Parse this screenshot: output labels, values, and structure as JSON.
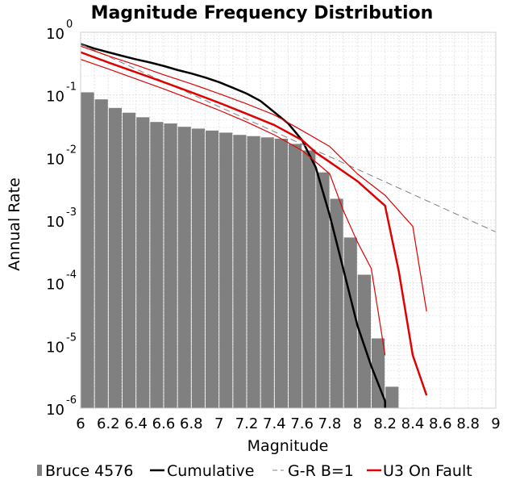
{
  "chart_data": {
    "type": "bar",
    "title": "Magnitude Frequency Distribution",
    "xlabel": "Magnitude",
    "ylabel": "Annual Rate",
    "xlim": [
      6,
      9
    ],
    "ylim": [
      1e-06,
      1
    ],
    "yscale": "log",
    "grid": true,
    "x_ticks": [
      "6",
      "6.2",
      "6.4",
      "6.6",
      "6.8",
      "7",
      "7.2",
      "7.4",
      "7.6",
      "7.8",
      "8",
      "8.2",
      "8.4",
      "8.6",
      "8.8",
      "9"
    ],
    "y_ticks": [
      {
        "base": "10",
        "exp": "0",
        "value": 1
      },
      {
        "base": "10",
        "exp": "-1",
        "value": 0.1
      },
      {
        "base": "10",
        "exp": "-2",
        "value": 0.01
      },
      {
        "base": "10",
        "exp": "-3",
        "value": 0.001
      },
      {
        "base": "10",
        "exp": "-4",
        "value": 0.0001
      },
      {
        "base": "10",
        "exp": "-5",
        "value": 1e-05
      },
      {
        "base": "10",
        "exp": "-6",
        "value": 1e-06
      }
    ],
    "legend_position": "bottom",
    "legend": [
      {
        "label": "Bruce 4576",
        "marker": "bar",
        "color": "#808080"
      },
      {
        "label": "Cumulative",
        "marker": "line",
        "color": "#000000"
      },
      {
        "label": "G-R B=1",
        "marker": "dashed",
        "color": "#808080"
      },
      {
        "label": "U3 On Fault",
        "marker": "line",
        "color": "#e00000"
      }
    ],
    "bars": {
      "name": "Bruce 4576",
      "color": "#808080",
      "bin_width": 0.1,
      "x": [
        6.05,
        6.15,
        6.25,
        6.35,
        6.45,
        6.55,
        6.65,
        6.75,
        6.85,
        6.95,
        7.05,
        7.15,
        7.25,
        7.35,
        7.45,
        7.55,
        7.65,
        7.75,
        7.85,
        7.95,
        8.05,
        8.15,
        8.25
      ],
      "values": [
        0.11,
        0.085,
        0.062,
        0.052,
        0.044,
        0.037,
        0.035,
        0.031,
        0.029,
        0.027,
        0.025,
        0.023,
        0.022,
        0.021,
        0.02,
        0.0165,
        0.013,
        0.0058,
        0.0022,
        0.00053,
        0.000135,
        1.3e-05,
        2.2e-06
      ]
    },
    "series": [
      {
        "name": "Cumulative",
        "color": "#000000",
        "width": 2.5,
        "x": [
          6.0,
          6.1,
          6.2,
          6.3,
          6.4,
          6.5,
          6.6,
          6.7,
          6.8,
          6.9,
          7.0,
          7.1,
          7.2,
          7.3,
          7.4,
          7.5,
          7.6,
          7.7,
          7.8,
          7.9,
          8.0,
          8.1,
          8.2,
          8.2
        ],
        "values": [
          0.65,
          0.55,
          0.48,
          0.42,
          0.37,
          0.33,
          0.29,
          0.25,
          0.22,
          0.19,
          0.16,
          0.13,
          0.105,
          0.08,
          0.053,
          0.035,
          0.019,
          0.0069,
          0.0012,
          0.00016,
          2.1e-05,
          4.7e-06,
          1.3e-06,
          1e-06
        ]
      },
      {
        "name": "G-R B=1",
        "color": "#808080",
        "dashed": true,
        "width": 1,
        "x": [
          6.0,
          9.0
        ],
        "values": [
          0.65,
          0.00065
        ]
      },
      {
        "name": "U3 On Fault",
        "color": "#e00000",
        "width": 2.5,
        "x": [
          6.0,
          6.2,
          6.4,
          6.6,
          6.8,
          7.0,
          7.2,
          7.4,
          7.6,
          7.7,
          7.8,
          8.0,
          8.2,
          8.3,
          8.4,
          8.5
        ],
        "values": [
          0.48,
          0.33,
          0.23,
          0.16,
          0.11,
          0.075,
          0.05,
          0.033,
          0.019,
          0.012,
          0.0085,
          0.0042,
          0.0017,
          0.00015,
          7e-06,
          1.6e-06
        ]
      },
      {
        "name": "U3 On Fault",
        "color": "#e00000",
        "width": 1.2,
        "x": [
          6.0,
          6.2,
          6.4,
          6.6,
          6.8,
          7.0,
          7.2,
          7.4,
          7.6,
          7.8,
          8.0,
          8.2,
          8.4,
          8.5
        ],
        "values": [
          0.6,
          0.42,
          0.3,
          0.21,
          0.15,
          0.105,
          0.072,
          0.048,
          0.027,
          0.015,
          0.0055,
          0.0025,
          0.0008,
          3.5e-05
        ]
      },
      {
        "name": "U3 On Fault",
        "color": "#e00000",
        "width": 1.2,
        "x": [
          6.0,
          6.2,
          6.4,
          6.6,
          6.8,
          7.0,
          7.2,
          7.4,
          7.6,
          7.8,
          7.9,
          8.0,
          8.1,
          8.2
        ],
        "values": [
          0.37,
          0.26,
          0.18,
          0.125,
          0.085,
          0.057,
          0.037,
          0.023,
          0.013,
          0.0055,
          0.0014,
          0.00045,
          0.00017,
          7e-06
        ]
      }
    ]
  }
}
